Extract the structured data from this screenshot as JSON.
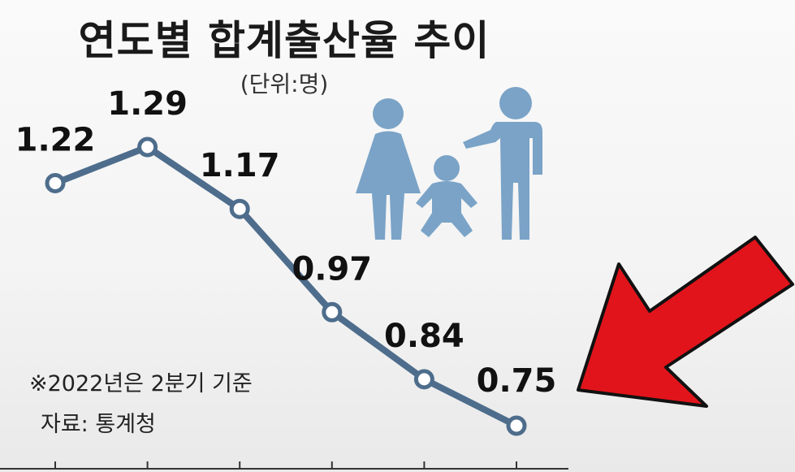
{
  "title": "연도별 합계출산율 추이",
  "unit": "(단위:명)",
  "note": "※2022년은 2분기 기준",
  "source": "자료: 통계청",
  "colors": {
    "line": "#4e6d8c",
    "icon": "#7aa3c7",
    "arrow": "#e2141b"
  },
  "icons": [
    "woman-icon",
    "baby-icon",
    "man-icon",
    "arrow-icon"
  ],
  "chart_data": {
    "type": "line",
    "x": [
      1,
      2,
      3,
      4,
      5,
      6
    ],
    "values": [
      1.22,
      1.29,
      1.17,
      0.97,
      0.84,
      0.75
    ],
    "data_labels": [
      "1.22",
      "1.29",
      "1.17",
      "0.97",
      "0.84",
      "0.75"
    ],
    "title": "연도별 합계출산율 추이",
    "ylim": [
      0.7,
      1.3
    ],
    "grid": false,
    "xlabel": "",
    "ylabel": ""
  }
}
